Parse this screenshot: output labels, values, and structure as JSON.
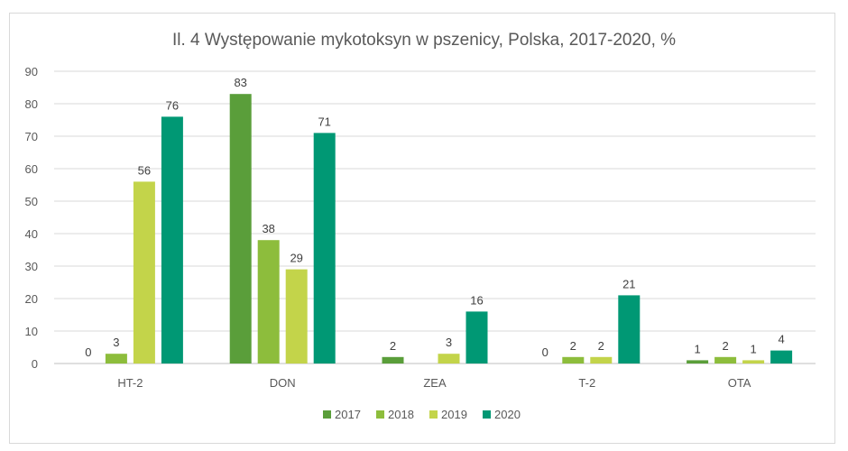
{
  "chart_data": {
    "type": "bar",
    "title": "Il. 4 Występowanie mykotoksyn w pszenicy, Polska, 2017-2020, %",
    "xlabel": "",
    "ylabel": "",
    "categories": [
      "HT-2",
      "DON",
      "ZEA",
      "T-2",
      "OTA"
    ],
    "ylim": [
      0,
      90
    ],
    "yticks": [
      0,
      10,
      20,
      30,
      40,
      50,
      60,
      70,
      80,
      90
    ],
    "grid": true,
    "legend": "bottom",
    "series": [
      {
        "name": "2017",
        "color": "#5a9e3a",
        "values": [
          0,
          83,
          2,
          0,
          1
        ]
      },
      {
        "name": "2018",
        "color": "#8dbd3c",
        "values": [
          3,
          38,
          null,
          2,
          2
        ]
      },
      {
        "name": "2019",
        "color": "#c3d44a",
        "values": [
          56,
          29,
          3,
          2,
          1
        ]
      },
      {
        "name": "2020",
        "color": "#009874",
        "values": [
          76,
          71,
          16,
          21,
          4
        ]
      }
    ]
  }
}
